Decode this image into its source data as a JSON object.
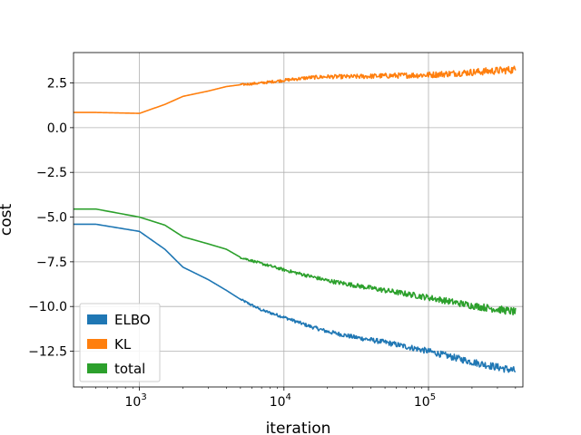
{
  "chart_data": {
    "type": "line",
    "title": "",
    "xlabel": "iteration",
    "ylabel": "cost",
    "xscale": "log",
    "xlim": [
      350,
      450000
    ],
    "ylim": [
      -14.5,
      4.2
    ],
    "grid": true,
    "legend_position": "lower-left",
    "x_ticks": [
      {
        "value": 1000,
        "base": "10",
        "exp": "3"
      },
      {
        "value": 10000,
        "base": "10",
        "exp": "4"
      },
      {
        "value": 100000,
        "base": "10",
        "exp": "5"
      }
    ],
    "y_ticks": [
      {
        "value": 2.5,
        "label": "2.5"
      },
      {
        "value": 0.0,
        "label": "0.0"
      },
      {
        "value": -2.5,
        "label": "−2.5"
      },
      {
        "value": -5.0,
        "label": "−5.0"
      },
      {
        "value": -7.5,
        "label": "−7.5"
      },
      {
        "value": -10.0,
        "label": "−10.0"
      },
      {
        "value": -12.5,
        "label": "−12.5"
      }
    ],
    "series": [
      {
        "name": "ELBO",
        "color": "#1f77b4",
        "noise_grows": true,
        "x": [
          350,
          500,
          1000,
          1500,
          2000,
          3000,
          4000,
          5000,
          7000,
          10000,
          15000,
          20000,
          30000,
          50000,
          100000,
          200000,
          400000
        ],
        "y": [
          -5.4,
          -5.4,
          -5.8,
          -6.8,
          -7.8,
          -8.5,
          -9.1,
          -9.6,
          -10.2,
          -10.6,
          -11.1,
          -11.4,
          -11.7,
          -12.0,
          -12.5,
          -13.1,
          -13.6
        ]
      },
      {
        "name": "KL",
        "color": "#ff7f0e",
        "noise_grows": true,
        "x": [
          350,
          500,
          1000,
          1500,
          2000,
          3000,
          4000,
          5000,
          7000,
          10000,
          15000,
          20000,
          30000,
          50000,
          100000,
          200000,
          400000
        ],
        "y": [
          0.85,
          0.85,
          0.8,
          1.3,
          1.75,
          2.05,
          2.3,
          2.4,
          2.5,
          2.65,
          2.8,
          2.85,
          2.85,
          2.9,
          2.95,
          3.1,
          3.25
        ]
      },
      {
        "name": "total",
        "color": "#2ca02c",
        "noise_grows": true,
        "x": [
          350,
          500,
          1000,
          1500,
          2000,
          3000,
          4000,
          5000,
          7000,
          10000,
          15000,
          20000,
          30000,
          50000,
          100000,
          200000,
          400000
        ],
        "y": [
          -4.55,
          -4.55,
          -5.0,
          -5.45,
          -6.1,
          -6.5,
          -6.8,
          -7.25,
          -7.6,
          -7.95,
          -8.3,
          -8.55,
          -8.8,
          -9.1,
          -9.5,
          -9.95,
          -10.3
        ]
      }
    ]
  }
}
